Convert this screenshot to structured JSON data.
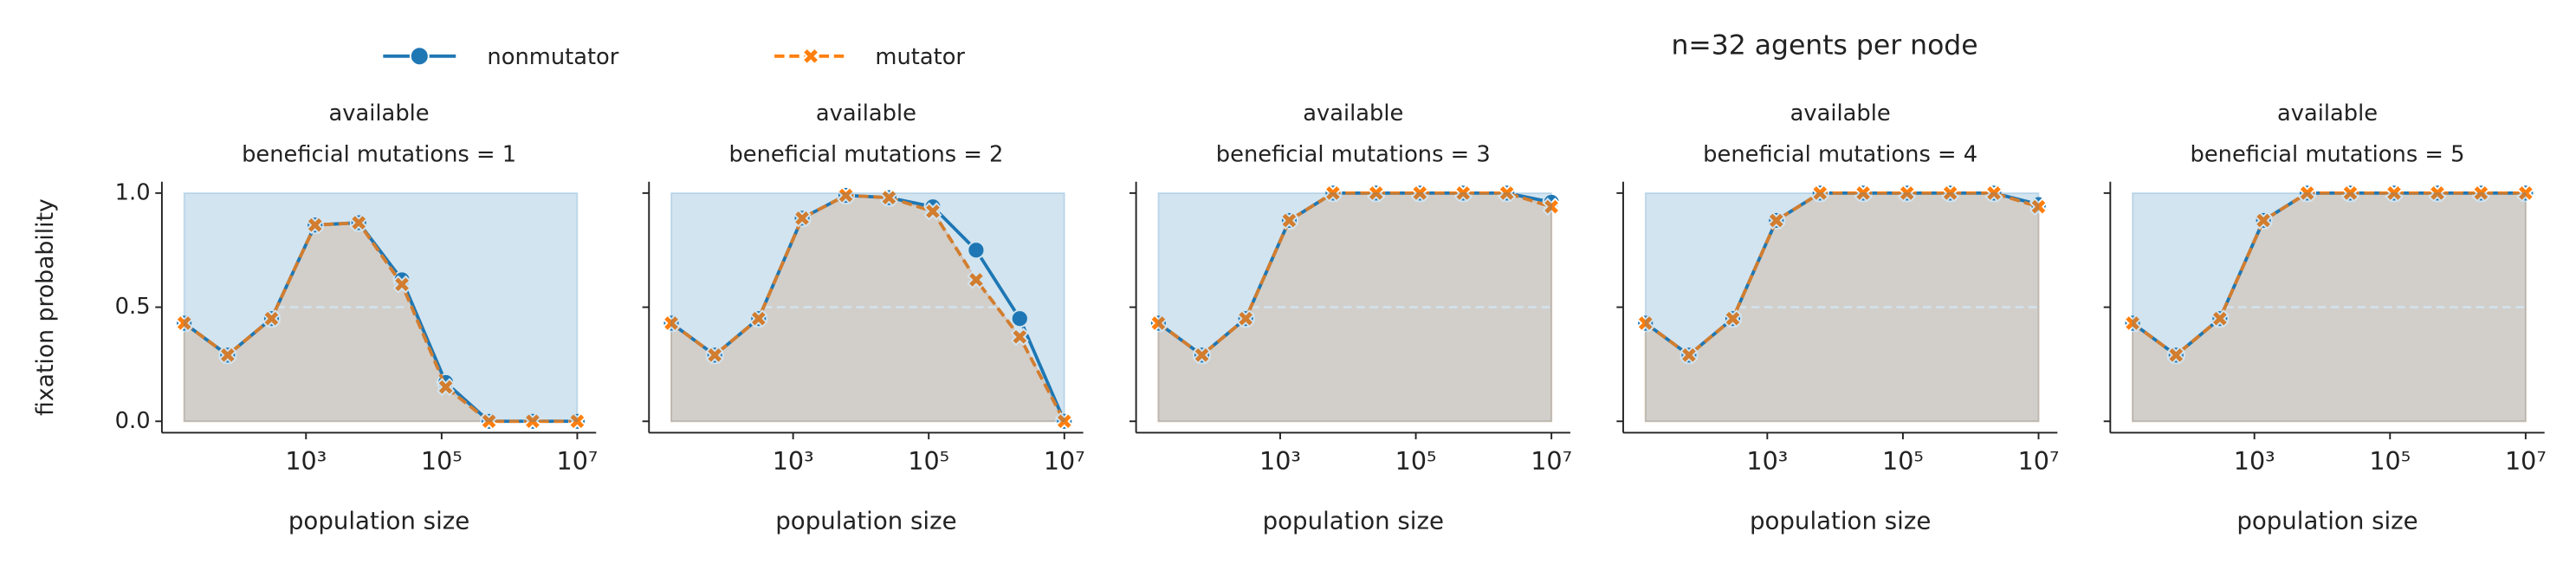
{
  "title": "n=32 agents per node",
  "chart_data": [
    {
      "type": "line",
      "title": [
        "available",
        "beneficial mutations = 1"
      ],
      "xlabel": "population size",
      "ylabel": "fixation probability",
      "x": [
        16,
        70,
        310,
        1360,
        6000,
        26000,
        115000,
        500000,
        2200000,
        10000000
      ],
      "xscale": "log",
      "xlim": [
        7.5,
        19000000
      ],
      "xticks": [
        {
          "value": 1000,
          "label": "10³"
        },
        {
          "value": 100000,
          "label": "10⁵"
        },
        {
          "value": 10000000,
          "label": "10⁷"
        }
      ],
      "ylim": [
        -0.05,
        1.05
      ],
      "yticks": [
        {
          "value": 0,
          "label": "0.0"
        },
        {
          "value": 0.5,
          "label": "0.5"
        },
        {
          "value": 1,
          "label": "1.0"
        }
      ],
      "hline": 0.5,
      "series": [
        {
          "name": "nonmutator",
          "color": "#1f77b4",
          "values": [
            0.43,
            0.29,
            0.45,
            0.86,
            0.87,
            0.62,
            0.17,
            0.0,
            0.0,
            0.0
          ]
        },
        {
          "name": "mutator",
          "color": "#ff7f0e",
          "values": [
            0.43,
            0.29,
            0.45,
            0.86,
            0.87,
            0.6,
            0.15,
            0.0,
            0.0,
            0.0
          ]
        }
      ]
    },
    {
      "type": "line",
      "title": [
        "available",
        "beneficial mutations = 2"
      ],
      "xlabel": "population size",
      "x": [
        16,
        70,
        310,
        1360,
        6000,
        26000,
        115000,
        500000,
        2200000,
        10000000
      ],
      "xscale": "log",
      "xlim": [
        7.5,
        19000000
      ],
      "xticks": [
        {
          "value": 1000,
          "label": "10³"
        },
        {
          "value": 100000,
          "label": "10⁵"
        },
        {
          "value": 10000000,
          "label": "10⁷"
        }
      ],
      "ylim": [
        -0.05,
        1.05
      ],
      "yticks": [
        0,
        0.5,
        1
      ],
      "hline": 0.5,
      "series": [
        {
          "name": "nonmutator",
          "color": "#1f77b4",
          "values": [
            0.43,
            0.29,
            0.45,
            0.89,
            0.99,
            0.98,
            0.94,
            0.75,
            0.45,
            0.0
          ]
        },
        {
          "name": "mutator",
          "color": "#ff7f0e",
          "values": [
            0.43,
            0.29,
            0.45,
            0.89,
            0.99,
            0.98,
            0.92,
            0.62,
            0.37,
            0.0
          ]
        }
      ]
    },
    {
      "type": "line",
      "title": [
        "available",
        "beneficial mutations = 3"
      ],
      "xlabel": "population size",
      "x": [
        16,
        70,
        310,
        1360,
        6000,
        26000,
        115000,
        500000,
        2200000,
        10000000
      ],
      "xscale": "log",
      "xlim": [
        7.5,
        19000000
      ],
      "xticks": [
        {
          "value": 1000,
          "label": "10³"
        },
        {
          "value": 100000,
          "label": "10⁵"
        },
        {
          "value": 10000000,
          "label": "10⁷"
        }
      ],
      "ylim": [
        -0.05,
        1.05
      ],
      "yticks": [
        0,
        0.5,
        1
      ],
      "hline": 0.5,
      "series": [
        {
          "name": "nonmutator",
          "color": "#1f77b4",
          "values": [
            0.43,
            0.29,
            0.45,
            0.88,
            1.0,
            1.0,
            1.0,
            1.0,
            1.0,
            0.96
          ]
        },
        {
          "name": "mutator",
          "color": "#ff7f0e",
          "values": [
            0.43,
            0.29,
            0.45,
            0.88,
            1.0,
            1.0,
            1.0,
            1.0,
            1.0,
            0.94
          ]
        }
      ]
    },
    {
      "type": "line",
      "title": [
        "available",
        "beneficial mutations = 4"
      ],
      "xlabel": "population size",
      "x": [
        16,
        70,
        310,
        1360,
        6000,
        26000,
        115000,
        500000,
        2200000,
        10000000
      ],
      "xscale": "log",
      "xlim": [
        7.5,
        19000000
      ],
      "xticks": [
        {
          "value": 1000,
          "label": "10³"
        },
        {
          "value": 100000,
          "label": "10⁵"
        },
        {
          "value": 10000000,
          "label": "10⁷"
        }
      ],
      "ylim": [
        -0.05,
        1.05
      ],
      "yticks": [
        0,
        0.5,
        1
      ],
      "hline": 0.5,
      "series": [
        {
          "name": "nonmutator",
          "color": "#1f77b4",
          "values": [
            0.43,
            0.29,
            0.45,
            0.88,
            1.0,
            1.0,
            1.0,
            1.0,
            1.0,
            0.95
          ]
        },
        {
          "name": "mutator",
          "color": "#ff7f0e",
          "values": [
            0.43,
            0.29,
            0.45,
            0.88,
            1.0,
            1.0,
            1.0,
            1.0,
            1.0,
            0.94
          ]
        }
      ]
    },
    {
      "type": "line",
      "title": [
        "available",
        "beneficial mutations = 5"
      ],
      "xlabel": "population size",
      "x": [
        16,
        70,
        310,
        1360,
        6000,
        26000,
        115000,
        500000,
        2200000,
        10000000
      ],
      "xscale": "log",
      "xlim": [
        7.5,
        19000000
      ],
      "xticks": [
        {
          "value": 1000,
          "label": "10³"
        },
        {
          "value": 100000,
          "label": "10⁵"
        },
        {
          "value": 10000000,
          "label": "10⁷"
        }
      ],
      "ylim": [
        -0.05,
        1.05
      ],
      "yticks": [
        0,
        0.5,
        1
      ],
      "hline": 0.5,
      "series": [
        {
          "name": "nonmutator",
          "color": "#1f77b4",
          "values": [
            0.43,
            0.29,
            0.45,
            0.88,
            1.0,
            1.0,
            1.0,
            1.0,
            1.0,
            1.0
          ]
        },
        {
          "name": "mutator",
          "color": "#ff7f0e",
          "values": [
            0.43,
            0.29,
            0.45,
            0.88,
            1.0,
            1.0,
            1.0,
            1.0,
            1.0,
            1.0
          ]
        }
      ]
    }
  ]
}
